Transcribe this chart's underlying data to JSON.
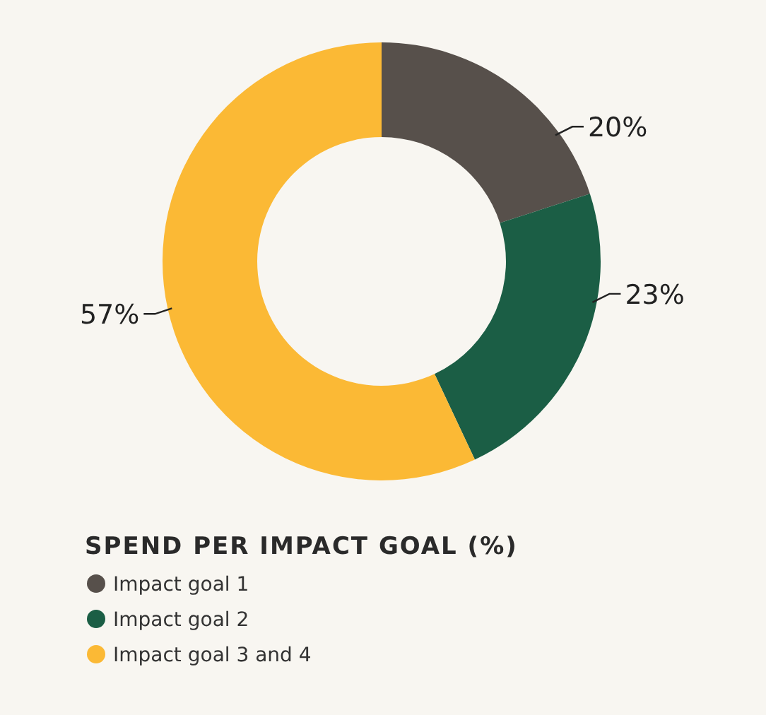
{
  "chart_data": {
    "type": "donut",
    "legend_title": "SPEND PER IMPACT GOAL (%)",
    "categories": [
      "Impact goal 1",
      "Impact goal 2",
      "Impact goal 3 and 4"
    ],
    "values": [
      20,
      23,
      57
    ],
    "value_labels": [
      "20%",
      "23%",
      "57%"
    ],
    "colors": [
      "#57504b",
      "#1b5e45",
      "#fbb935"
    ],
    "legend": "bottom left"
  }
}
